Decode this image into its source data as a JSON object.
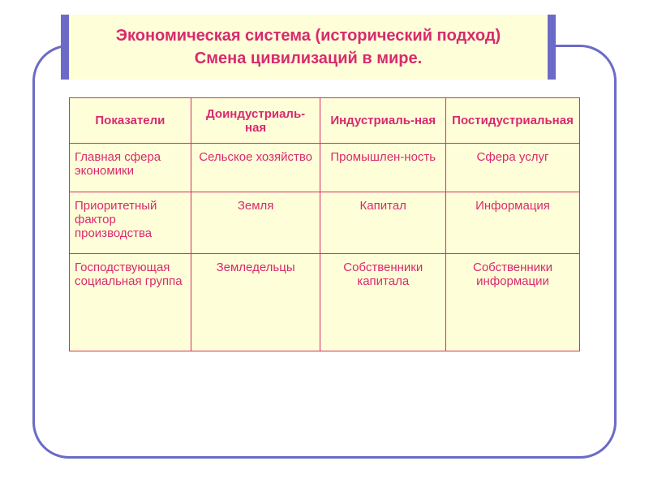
{
  "colors": {
    "frame_border": "#6b6bc7",
    "panel_bg": "#feffd8",
    "text": "#d82a6e",
    "table_border": "#d82a6e",
    "page_bg": "#ffffff"
  },
  "title": {
    "line1": "Экономическая система (исторический подход)",
    "line2": "Смена цивилизаций в мире."
  },
  "table": {
    "headers": [
      "Показатели",
      "Доиндустриаль-ная",
      "Индустриаль-ная",
      "Постидустриальная"
    ],
    "rows": [
      {
        "label": "Главная сфера экономики",
        "cells": [
          "Сельское хозяйство",
          "Промышлен-ность",
          "Сфера услуг"
        ]
      },
      {
        "label": "Приоритетный фактор производства",
        "cells": [
          "Земля",
          "Капитал",
          "Информация"
        ]
      },
      {
        "label": "Господствующая социальная группа",
        "cells": [
          "Земледельцы",
          "Собственники капитала",
          "Собственники информации"
        ]
      }
    ]
  }
}
